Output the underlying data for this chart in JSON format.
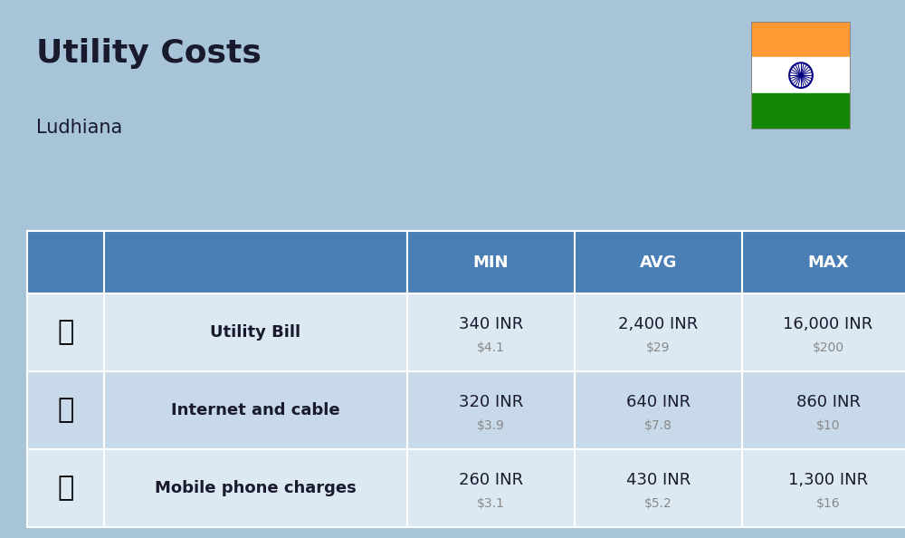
{
  "title": "Utility Costs",
  "subtitle": "Ludhiana",
  "background_color": "#a8c4d8",
  "header_bg_color": "#4a7fb5",
  "header_text_color": "#ffffff",
  "row_bg_even": "#dce9f3",
  "row_bg_odd": "#c8daea",
  "col_headers": [
    "",
    "",
    "MIN",
    "AVG",
    "MAX"
  ],
  "rows": [
    {
      "label": "Utility Bill",
      "min_inr": "340 INR",
      "min_usd": "$4.1",
      "avg_inr": "2,400 INR",
      "avg_usd": "$29",
      "max_inr": "16,000 INR",
      "max_usd": "$200"
    },
    {
      "label": "Internet and cable",
      "min_inr": "320 INR",
      "min_usd": "$3.9",
      "avg_inr": "640 INR",
      "avg_usd": "$7.8",
      "max_inr": "860 INR",
      "max_usd": "$10"
    },
    {
      "label": "Mobile phone charges",
      "min_inr": "260 INR",
      "min_usd": "$3.1",
      "avg_inr": "430 INR",
      "avg_usd": "$5.2",
      "max_inr": "1,300 INR",
      "max_usd": "$16"
    }
  ],
  "flag_colors": [
    "#FF9933",
    "#FFFFFF",
    "#138808"
  ],
  "inr_fontsize": 13,
  "usd_fontsize": 10,
  "label_fontsize": 13,
  "header_fontsize": 13
}
